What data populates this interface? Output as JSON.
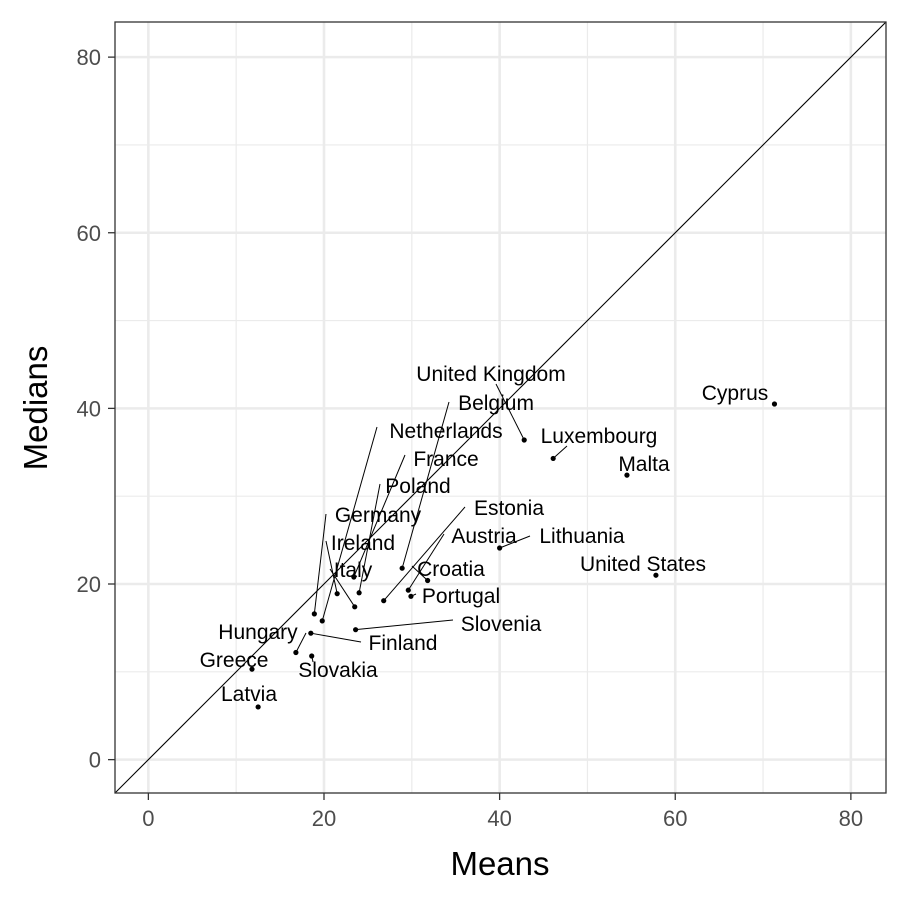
{
  "chart_data": {
    "type": "scatter",
    "xlabel": "Means",
    "ylabel": "Medians",
    "xlim": [
      -3.8,
      84
    ],
    "ylim": [
      -3.8,
      84
    ],
    "x_ticks": [
      0,
      20,
      40,
      60,
      80
    ],
    "y_ticks": [
      0,
      20,
      40,
      60,
      80
    ],
    "x_tick_labels": [
      "0",
      "20",
      "40",
      "60",
      "80"
    ],
    "y_tick_labels": [
      "0",
      "20",
      "40",
      "60",
      "80"
    ],
    "grid": true,
    "reference_line": "y = x",
    "points": [
      {
        "label": "Cyprus",
        "x": 71.3,
        "y": 40.5
      },
      {
        "label": "Malta",
        "x": 54.5,
        "y": 32.4
      },
      {
        "label": "United States",
        "x": 57.8,
        "y": 21.0
      },
      {
        "label": "Luxembourg",
        "x": 46.1,
        "y": 34.3
      },
      {
        "label": "United Kingdom",
        "x": 42.8,
        "y": 36.4
      },
      {
        "label": "Lithuania",
        "x": 40.0,
        "y": 24.1
      },
      {
        "label": "Belgium",
        "x": 28.9,
        "y": 21.8
      },
      {
        "label": "Netherlands",
        "x": 19.8,
        "y": 15.8
      },
      {
        "label": "France",
        "x": 23.4,
        "y": 20.8
      },
      {
        "label": "Poland",
        "x": 24.0,
        "y": 19.0
      },
      {
        "label": "Germany",
        "x": 18.9,
        "y": 16.6
      },
      {
        "label": "Ireland",
        "x": 21.5,
        "y": 18.9
      },
      {
        "label": "Italy",
        "x": 23.5,
        "y": 17.4
      },
      {
        "label": "Estonia",
        "x": 26.8,
        "y": 18.1
      },
      {
        "label": "Austria",
        "x": 29.6,
        "y": 19.3
      },
      {
        "label": "Croatia",
        "x": 31.8,
        "y": 20.4
      },
      {
        "label": "Portugal",
        "x": 29.9,
        "y": 18.6
      },
      {
        "label": "Slovenia",
        "x": 23.6,
        "y": 14.8
      },
      {
        "label": "Finland",
        "x": 18.5,
        "y": 14.4
      },
      {
        "label": "Hungary",
        "x": 16.8,
        "y": 12.2
      },
      {
        "label": "Slovakia",
        "x": 18.6,
        "y": 11.8
      },
      {
        "label": "Greece",
        "x": 11.8,
        "y": 10.3
      },
      {
        "label": "Latvia",
        "x": 12.5,
        "y": 6.0
      }
    ]
  }
}
